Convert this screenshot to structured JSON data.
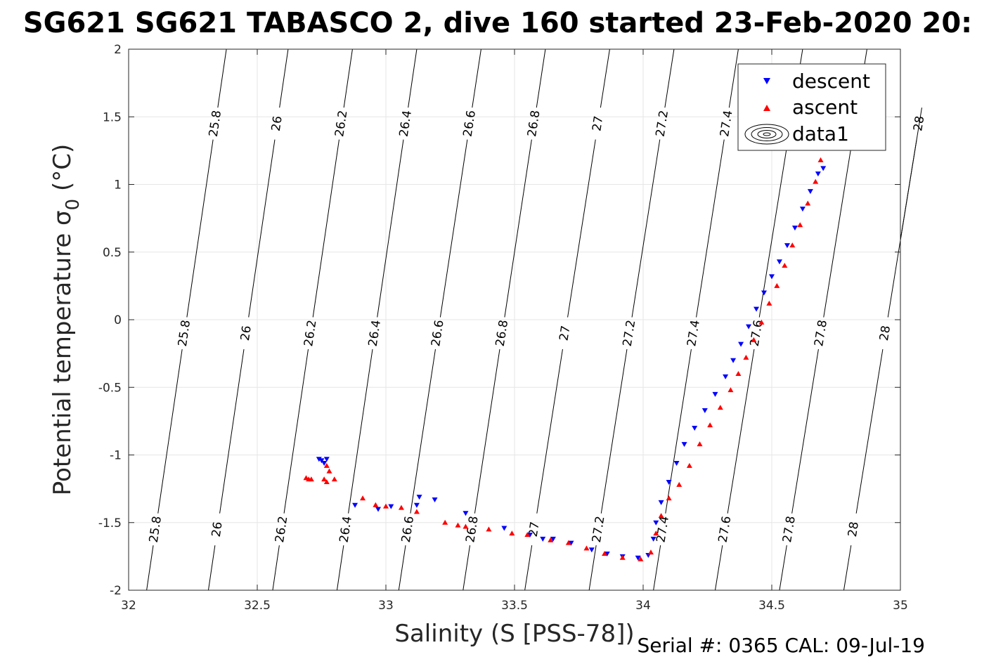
{
  "title": "SG621 SG621 TABASCO 2, dive 160 started 23-Feb-2020 20:",
  "footer": {
    "serial": "Serial #: 0365  CAL: 09-Jul-19"
  },
  "chart_data": {
    "type": "scatter",
    "xlabel": "Salinity (S [PSS-78])",
    "ylabel": "Potential temperature σ",
    "ylabel_sub": "0",
    "ylabel_unit": " (°C)",
    "xlim": [
      32,
      35
    ],
    "ylim": [
      -2,
      2
    ],
    "xticks": [
      "32",
      "32.5",
      "33",
      "33.5",
      "34",
      "34.5",
      "35"
    ],
    "yticks": [
      "-2",
      "-1.5",
      "-1",
      "-0.5",
      "0",
      "0.5",
      "1",
      "1.5",
      "2"
    ],
    "grid": true,
    "legend": {
      "placement": "top-right",
      "entries": [
        "descent",
        "ascent",
        "data1"
      ]
    },
    "colors": {
      "descent": "#0000ff",
      "ascent": "#ff0000",
      "contour": "#000000",
      "grid": "#e6e6e6",
      "axis": "#262626"
    },
    "contour_levels": [
      "25.8",
      "26",
      "26.2",
      "26.4",
      "26.6",
      "26.8",
      "27",
      "27.2",
      "27.4",
      "27.6",
      "27.8",
      "28"
    ],
    "series": [
      {
        "name": "descent",
        "marker": "triangle-down",
        "points": [
          [
            32.74,
            -1.03
          ],
          [
            32.75,
            -1.04
          ],
          [
            32.77,
            -1.03
          ],
          [
            32.76,
            -1.06
          ],
          [
            32.88,
            -1.37
          ],
          [
            32.97,
            -1.4
          ],
          [
            33.02,
            -1.38
          ],
          [
            33.12,
            -1.37
          ],
          [
            33.13,
            -1.31
          ],
          [
            33.19,
            -1.33
          ],
          [
            33.31,
            -1.43
          ],
          [
            33.46,
            -1.54
          ],
          [
            33.56,
            -1.59
          ],
          [
            33.61,
            -1.62
          ],
          [
            33.65,
            -1.62
          ],
          [
            33.72,
            -1.65
          ],
          [
            33.8,
            -1.7
          ],
          [
            33.86,
            -1.73
          ],
          [
            33.92,
            -1.75
          ],
          [
            33.98,
            -1.76
          ],
          [
            34.02,
            -1.74
          ],
          [
            34.04,
            -1.62
          ],
          [
            34.05,
            -1.5
          ],
          [
            34.07,
            -1.35
          ],
          [
            34.1,
            -1.2
          ],
          [
            34.13,
            -1.06
          ],
          [
            34.16,
            -0.92
          ],
          [
            34.2,
            -0.8
          ],
          [
            34.24,
            -0.67
          ],
          [
            34.28,
            -0.55
          ],
          [
            34.32,
            -0.42
          ],
          [
            34.35,
            -0.3
          ],
          [
            34.38,
            -0.18
          ],
          [
            34.41,
            -0.05
          ],
          [
            34.44,
            0.08
          ],
          [
            34.47,
            0.2
          ],
          [
            34.5,
            0.32
          ],
          [
            34.53,
            0.43
          ],
          [
            34.56,
            0.55
          ],
          [
            34.59,
            0.68
          ],
          [
            34.62,
            0.82
          ],
          [
            34.65,
            0.95
          ],
          [
            34.68,
            1.08
          ],
          [
            34.7,
            1.12
          ]
        ]
      },
      {
        "name": "ascent",
        "marker": "triangle-up",
        "points": [
          [
            32.69,
            -1.17
          ],
          [
            32.7,
            -1.18
          ],
          [
            32.71,
            -1.18
          ],
          [
            32.76,
            -1.18
          ],
          [
            32.77,
            -1.2
          ],
          [
            32.77,
            -1.08
          ],
          [
            32.78,
            -1.12
          ],
          [
            32.8,
            -1.18
          ],
          [
            32.91,
            -1.32
          ],
          [
            32.96,
            -1.37
          ],
          [
            33.0,
            -1.38
          ],
          [
            33.06,
            -1.39
          ],
          [
            33.12,
            -1.42
          ],
          [
            33.23,
            -1.5
          ],
          [
            33.28,
            -1.52
          ],
          [
            33.31,
            -1.53
          ],
          [
            33.4,
            -1.55
          ],
          [
            33.49,
            -1.58
          ],
          [
            33.55,
            -1.59
          ],
          [
            33.64,
            -1.63
          ],
          [
            33.71,
            -1.65
          ],
          [
            33.78,
            -1.69
          ],
          [
            33.85,
            -1.73
          ],
          [
            33.92,
            -1.76
          ],
          [
            33.99,
            -1.77
          ],
          [
            34.03,
            -1.72
          ],
          [
            34.05,
            -1.58
          ],
          [
            34.07,
            -1.45
          ],
          [
            34.1,
            -1.32
          ],
          [
            34.14,
            -1.22
          ],
          [
            34.18,
            -1.08
          ],
          [
            34.22,
            -0.92
          ],
          [
            34.26,
            -0.78
          ],
          [
            34.3,
            -0.65
          ],
          [
            34.34,
            -0.52
          ],
          [
            34.37,
            -0.4
          ],
          [
            34.4,
            -0.28
          ],
          [
            34.43,
            -0.15
          ],
          [
            34.46,
            -0.02
          ],
          [
            34.49,
            0.12
          ],
          [
            34.52,
            0.25
          ],
          [
            34.55,
            0.4
          ],
          [
            34.58,
            0.55
          ],
          [
            34.61,
            0.7
          ],
          [
            34.64,
            0.86
          ],
          [
            34.67,
            1.02
          ],
          [
            34.69,
            1.18
          ]
        ]
      }
    ],
    "contours": [
      {
        "label": "25.8",
        "x_bottom": 32.07,
        "x_top": 32.38,
        "label_y": [
          -1.55,
          -0.1,
          1.45
        ]
      },
      {
        "label": "26",
        "x_bottom": 32.31,
        "x_top": 32.62,
        "label_y": [
          -1.55,
          -0.1,
          1.45
        ]
      },
      {
        "label": "26.2",
        "x_bottom": 32.56,
        "x_top": 32.87,
        "label_y": [
          -1.55,
          -0.1,
          1.45
        ]
      },
      {
        "label": "26.4",
        "x_bottom": 32.81,
        "x_top": 33.12,
        "label_y": [
          -1.55,
          -0.1,
          1.45
        ]
      },
      {
        "label": "26.6",
        "x_bottom": 33.05,
        "x_top": 33.37,
        "label_y": [
          -1.55,
          -0.1,
          1.45
        ]
      },
      {
        "label": "26.8",
        "x_bottom": 33.3,
        "x_top": 33.62,
        "label_y": [
          -1.55,
          -0.1,
          1.45
        ]
      },
      {
        "label": "27",
        "x_bottom": 33.54,
        "x_top": 33.87,
        "label_y": [
          -1.55,
          -0.1,
          1.45
        ]
      },
      {
        "label": "27.2",
        "x_bottom": 33.79,
        "x_top": 34.12,
        "label_y": [
          -1.55,
          -0.1,
          1.45
        ]
      },
      {
        "label": "27.4",
        "x_bottom": 34.04,
        "x_top": 34.37,
        "label_y": [
          -1.55,
          -0.1,
          1.45
        ]
      },
      {
        "label": "27.6",
        "x_bottom": 34.28,
        "x_top": 34.62,
        "label_y": [
          -1.55,
          -0.1
        ]
      },
      {
        "label": "27.8",
        "x_bottom": 34.53,
        "x_top": 34.87,
        "label_y": [
          -1.55,
          -0.1
        ]
      },
      {
        "label": "28",
        "x_bottom": 34.78,
        "x_top": 35.12,
        "label_y": [
          -1.55,
          -0.1,
          1.45
        ]
      }
    ]
  }
}
